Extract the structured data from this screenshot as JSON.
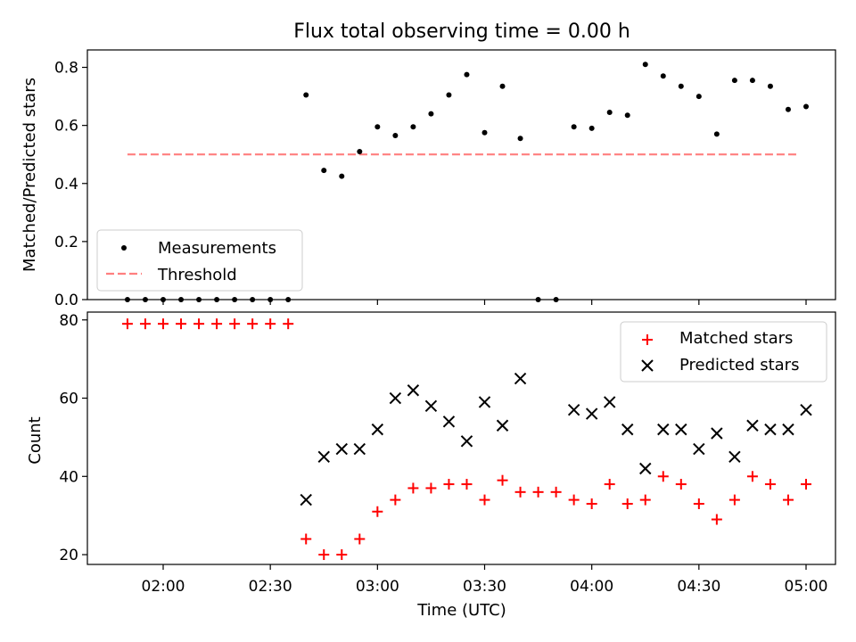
{
  "chart_data": [
    {
      "type": "scatter",
      "title": "Flux total observing time = 0.00 h",
      "xlabel": "",
      "ylabel": "Matched/Predicted stars",
      "ylim": [
        0.0,
        0.86
      ],
      "yticks": [
        "0.0",
        "0.2",
        "0.4",
        "0.6",
        "0.8"
      ],
      "legend_position": "lower-left",
      "series": [
        {
          "name": "Measurements",
          "marker": "dot",
          "color": "#000000",
          "x": [
            "01:50",
            "01:55",
            "02:00",
            "02:05",
            "02:10",
            "02:15",
            "02:20",
            "02:25",
            "02:30",
            "02:35",
            "02:40",
            "02:45",
            "02:50",
            "02:55",
            "03:00",
            "03:05",
            "03:10",
            "03:15",
            "03:20",
            "03:25",
            "03:30",
            "03:35",
            "03:40",
            "03:45",
            "03:50",
            "03:55",
            "04:00",
            "04:05",
            "04:10",
            "04:15",
            "04:20",
            "04:25",
            "04:30",
            "04:35",
            "04:40",
            "04:45",
            "04:50",
            "04:55",
            "05:00"
          ],
          "values": [
            0,
            0,
            0,
            0,
            0,
            0,
            0,
            0,
            0,
            0,
            0.705,
            0.445,
            0.425,
            0.51,
            0.595,
            0.565,
            0.595,
            0.64,
            0.705,
            0.775,
            0.575,
            0.735,
            0.555,
            0,
            0,
            0.595,
            0.59,
            0.645,
            0.635,
            0.81,
            0.77,
            0.735,
            0.7,
            0.57,
            0.755,
            0.755,
            0.735,
            0.655,
            0.665
          ]
        },
        {
          "name": "Threshold",
          "style": "dashed",
          "color": "#ff7f7f",
          "x": [
            "01:50",
            "04:58"
          ],
          "values": [
            0.5,
            0.5
          ]
        }
      ]
    },
    {
      "type": "scatter",
      "title": "",
      "xlabel": "Time (UTC)",
      "ylabel": "Count",
      "ylim": [
        17.5,
        82
      ],
      "yticks": [
        "20",
        "40",
        "60",
        "80"
      ],
      "xticks": [
        "02:00",
        "02:30",
        "03:00",
        "03:30",
        "04:00",
        "04:30",
        "05:00"
      ],
      "legend_position": "upper-right",
      "series": [
        {
          "name": "Matched stars",
          "marker": "plus",
          "color": "#ff0000",
          "x": [
            "01:50",
            "01:55",
            "02:00",
            "02:05",
            "02:10",
            "02:15",
            "02:20",
            "02:25",
            "02:30",
            "02:35",
            "02:40",
            "02:45",
            "02:50",
            "02:55",
            "03:00",
            "03:05",
            "03:10",
            "03:15",
            "03:20",
            "03:25",
            "03:30",
            "03:35",
            "03:40",
            "03:45",
            "03:50",
            "03:55",
            "04:00",
            "04:05",
            "04:10",
            "04:15",
            "04:20",
            "04:25",
            "04:30",
            "04:35",
            "04:40",
            "04:45",
            "04:50",
            "04:55",
            "05:00"
          ],
          "values": [
            79,
            79,
            79,
            79,
            79,
            79,
            79,
            79,
            79,
            79,
            24,
            20,
            20,
            24,
            31,
            34,
            37,
            37,
            38,
            38,
            34,
            39,
            36,
            36,
            36,
            34,
            33,
            38,
            33,
            34,
            40,
            38,
            33,
            29,
            34,
            40,
            38,
            34,
            38
          ]
        },
        {
          "name": "Predicted stars",
          "marker": "x",
          "color": "#000000",
          "x": [
            "02:40",
            "02:45",
            "02:50",
            "02:55",
            "03:00",
            "03:05",
            "03:10",
            "03:15",
            "03:20",
            "03:25",
            "03:30",
            "03:35",
            "03:40",
            "03:55",
            "04:00",
            "04:05",
            "04:10",
            "04:15",
            "04:20",
            "04:25",
            "04:30",
            "04:35",
            "04:40",
            "04:45",
            "04:50",
            "04:55",
            "05:00"
          ],
          "values": [
            34,
            45,
            47,
            47,
            52,
            60,
            62,
            58,
            54,
            49,
            59,
            53,
            65,
            57,
            56,
            59,
            52,
            42,
            52,
            52,
            47,
            51,
            45,
            53,
            52,
            52,
            57
          ]
        }
      ]
    }
  ]
}
